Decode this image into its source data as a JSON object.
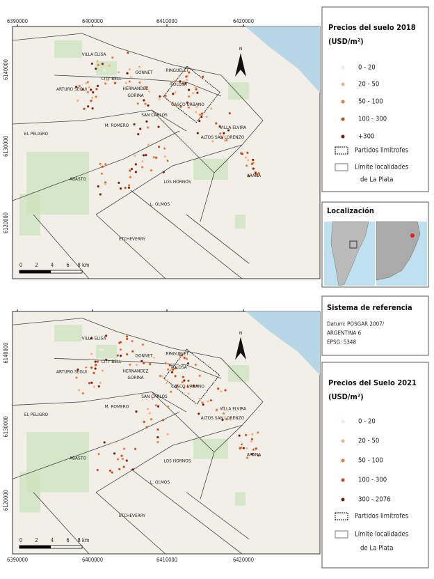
{
  "maps": [
    {
      "xlabels": [
        "6390000",
        "6400000",
        "6410000",
        "6420000"
      ],
      "ylabels": [
        "6140000",
        "6130000",
        "6120000"
      ],
      "places": [
        "VILLA ELISA",
        "GONNET",
        "CITY BELL",
        "RINGUELET",
        "ARTURO SEGUI",
        "HERNANDEZ",
        "GORINA",
        "TOLOSA",
        "CASCO URBANO",
        "SAN CARLOS",
        "M. ROMERO",
        "VILLA ELVIRA",
        "ALTOS SAN LORENZO",
        "EL PELIGRO",
        "ABASTO",
        "LOS HORNOS",
        "ARANA",
        "L. OLMOS",
        "ETCHEVERRY"
      ],
      "north": "N",
      "scale": [
        "0",
        "2",
        "4",
        "6",
        "8 km"
      ]
    },
    {
      "xlabels": [
        "6390000",
        "6400000",
        "6410000",
        "6420000"
      ],
      "ylabels": [
        "6140000",
        "6130000",
        "6120000"
      ],
      "places": [
        "VILLA ELISA",
        "GONNET",
        "CITY BELL",
        "RINGUELET",
        "ARTURO SEGUI",
        "HERNANDEZ",
        "GORINA",
        "TOLOSA",
        "CASCO URBANO",
        "SAN CARLOS",
        "M. ROMERO",
        "VILLA ELVIRA",
        "ALTOS SAN LORENZO",
        "EL PELIGRO",
        "ABASTO",
        "LOS HORNOS",
        "ARANA",
        "L. OLMOS",
        "ETCHEVERRY"
      ],
      "north": "N",
      "scale": [
        "0",
        "2",
        "4",
        "6",
        "8 km"
      ]
    }
  ],
  "legends": [
    {
      "title": "Precios del suelo 2018",
      "unit": "(USD/m²)",
      "classes": [
        "0 - 20",
        "20 - 50",
        "50 - 100",
        "100 - 300",
        "+300"
      ],
      "colors": [
        "#fbe6d6",
        "#f5b183",
        "#ea7b3c",
        "#c94a12",
        "#7a1d06"
      ],
      "boundaries": [
        "Partidos limítrofes",
        "Límite localidades",
        "de La Plata"
      ]
    },
    {
      "title": "Precios del Suelo 2021",
      "unit": "(USD/m²)",
      "classes": [
        "0 - 20",
        "20 - 50",
        "50 - 100",
        "100 - 300",
        "300 - 2076"
      ],
      "colors": [
        "#fbe6d6",
        "#f5b183",
        "#ea7b3c",
        "#c94a12",
        "#7a1d06"
      ],
      "boundaries": [
        "Partidos limítrofes",
        "Límite localidades",
        "de La Plata"
      ]
    }
  ],
  "location": {
    "title": "Localización"
  },
  "reference": {
    "title": "Sistema de referencia",
    "lines": [
      "Datum: POSGAR 2007/",
      "ARGENTINA 6",
      "EPSG: 5348"
    ]
  }
}
